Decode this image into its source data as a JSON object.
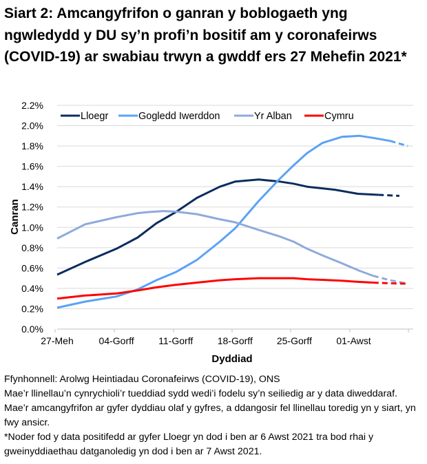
{
  "chart_data": {
    "type": "line",
    "title": "Siart 2: Amcangyfrifon o ganran y boblogaeth yng ngwledydd y DU sy’n profi’n bositif am y coronafeirws (COVID-19) ar swabiau trwyn a gwddf ers 27 Mehefin 2021*",
    "xlabel": "Dyddiad",
    "ylabel": "Canran",
    "x_unit": "days since 27 June 2021",
    "x_ticks": [
      {
        "day": 0,
        "label": "27-Meh"
      },
      {
        "day": 7,
        "label": "04-Gorff"
      },
      {
        "day": 14,
        "label": "11-Gorff"
      },
      {
        "day": 21,
        "label": "18-Gorff"
      },
      {
        "day": 28,
        "label": "25-Gorff"
      },
      {
        "day": 35,
        "label": "01-Awst"
      }
    ],
    "xlim": [
      0,
      42
    ],
    "ylim": [
      0,
      2.2
    ],
    "y_ticks": [
      "0.0%",
      "0.2%",
      "0.4%",
      "0.6%",
      "0.8%",
      "1.0%",
      "1.2%",
      "1.4%",
      "1.6%",
      "1.8%",
      "2.0%",
      "2.2%"
    ],
    "grid": true,
    "legend_position": "top",
    "series": [
      {
        "name": "Lloegr",
        "color": "#0b2c5e",
        "solid_until_day": 37.9,
        "x": [
          0,
          3.3,
          7,
          9.5,
          11.7,
          14,
          16.5,
          19.2,
          21,
          23.8,
          26.3,
          27.9,
          29.5,
          32.8,
          35.5,
          37.9,
          40.4
        ],
        "y": [
          0.535,
          0.66,
          0.79,
          0.9,
          1.04,
          1.15,
          1.29,
          1.4,
          1.45,
          1.47,
          1.45,
          1.43,
          1.4,
          1.37,
          1.33,
          1.32,
          1.31
        ]
      },
      {
        "name": "Gogledd Iwerddon",
        "color": "#5aa2f5",
        "solid_until_day": 39.3,
        "x": [
          0,
          3.3,
          7,
          9.5,
          11.7,
          14,
          16.5,
          19.2,
          21,
          23.8,
          26.3,
          27.9,
          29.5,
          31.3,
          33.6,
          35.7,
          37.3,
          39.3,
          41.4
        ],
        "y": [
          0.21,
          0.27,
          0.32,
          0.39,
          0.48,
          0.56,
          0.68,
          0.86,
          0.99,
          1.26,
          1.48,
          1.61,
          1.73,
          1.83,
          1.89,
          1.9,
          1.88,
          1.85,
          1.8
        ]
      },
      {
        "name": "Yr Alban",
        "color": "#8eaadc",
        "solid_until_day": 39.0,
        "x": [
          0,
          3.3,
          7,
          9.5,
          10.7,
          12.5,
          14,
          16.5,
          19.2,
          21,
          23.8,
          26.3,
          27.9,
          29.5,
          31.3,
          33.6,
          35.7,
          37.3,
          39.3,
          41.4
        ],
        "y": [
          0.89,
          1.03,
          1.1,
          1.14,
          1.15,
          1.16,
          1.155,
          1.13,
          1.08,
          1.05,
          0.975,
          0.91,
          0.86,
          0.79,
          0.725,
          0.647,
          0.573,
          0.524,
          0.48,
          0.446
        ]
      },
      {
        "name": "Cymru",
        "color": "#ff0000",
        "solid_until_day": 39.0,
        "x": [
          0,
          3.3,
          7,
          9.5,
          11.7,
          14,
          16.5,
          19.2,
          21,
          23.8,
          26.3,
          27.9,
          29.5,
          31.3,
          33.6,
          35.7,
          37.3,
          39.3,
          41.4
        ],
        "y": [
          0.3,
          0.33,
          0.35,
          0.38,
          0.41,
          0.435,
          0.457,
          0.48,
          0.49,
          0.5,
          0.5,
          0.5,
          0.49,
          0.484,
          0.475,
          0.464,
          0.457,
          0.45,
          0.446
        ]
      }
    ]
  },
  "notes": [
    "Ffynhonnell: Arolwg Heintiadau Coronafeirws (COVID-19), ONS",
    "Mae’r llinellau’n cynrychioli’r tueddiad sydd wedi’i fodelu sy’n seiliedig ar y data diweddaraf. Mae’r amcangyfrifon ar gyfer dyddiau olaf y gyfres, a ddangosir fel llinellau toredig yn y siart, yn fwy ansicr.",
    "*Noder fod y data positifedd ar gyfer Lloegr yn dod i ben ar 6 Awst 2021 tra bod rhai y gweinyddiaethau datganoledig yn dod i ben ar 7 Awst 2021."
  ]
}
